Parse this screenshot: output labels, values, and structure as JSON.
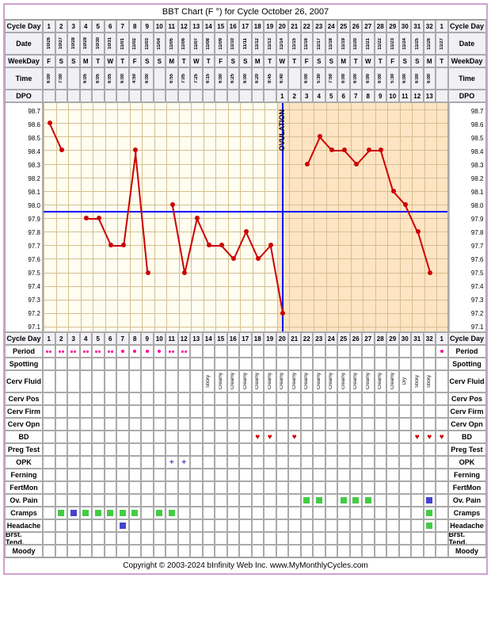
{
  "title": "BBT Chart (F °) for Cycle October 26, 2007",
  "copyright": "Copyright © 2003-2024 bInfinity Web Inc.    www.MyMonthlyCycles.com",
  "cols": 33,
  "cellw": 15.5,
  "labels": {
    "cycleday": "Cycle Day",
    "date": "Date",
    "weekday": "WeekDay",
    "time": "Time",
    "dpo": "DPO",
    "period": "Period",
    "spotting": "Spotting",
    "cervfluid": "Cerv Fluid",
    "cervpos": "Cerv Pos",
    "cervfirm": "Cerv Firm",
    "cervopn": "Cerv Opn",
    "bd": "BD",
    "preg": "Preg Test",
    "opk": "OPK",
    "ferning": "Ferning",
    "fertmon": "FertMon",
    "ovpain": "Ov. Pain",
    "cramps": "Cramps",
    "headache": "Headache",
    "brst": "Brst. Tend.",
    "moody": "Moody",
    "ovulation": "OVULATION"
  },
  "cycledays": [
    "1",
    "2",
    "3",
    "4",
    "5",
    "6",
    "7",
    "8",
    "9",
    "10",
    "11",
    "12",
    "13",
    "14",
    "15",
    "16",
    "17",
    "18",
    "19",
    "20",
    "21",
    "22",
    "23",
    "24",
    "25",
    "26",
    "27",
    "28",
    "29",
    "30",
    "31",
    "32",
    "1"
  ],
  "dates": [
    "10/26",
    "10/27",
    "10/28",
    "10/29",
    "10/30",
    "10/31",
    "11/01",
    "11/02",
    "11/03",
    "11/04",
    "11/05",
    "11/06",
    "11/07",
    "11/08",
    "11/09",
    "11/10",
    "11/11",
    "11/12",
    "11/13",
    "11/14",
    "11/15",
    "11/16",
    "11/17",
    "11/18",
    "11/19",
    "11/20",
    "11/21",
    "11/22",
    "11/23",
    "11/24",
    "11/25",
    "11/26",
    "11/27"
  ],
  "weekdays": [
    "F",
    "S",
    "S",
    "M",
    "T",
    "W",
    "T",
    "F",
    "S",
    "S",
    "M",
    "T",
    "W",
    "T",
    "F",
    "S",
    "S",
    "M",
    "T",
    "W",
    "T",
    "F",
    "S",
    "S",
    "M",
    "T",
    "W",
    "T",
    "F",
    "S",
    "S",
    "M",
    "T"
  ],
  "times": [
    "6:00",
    "7:00",
    "",
    "6:05",
    "6:05",
    "6:05",
    "6:00",
    "4:50",
    "6:00",
    "",
    "6:55",
    "7:05",
    "7:25",
    "6:15",
    "6:00",
    "6:25",
    "6:00",
    "6:20",
    "9:45",
    "6:40",
    "",
    "6:00",
    "5:30",
    "7:50",
    "6:00",
    "6:00",
    "6:00",
    "6:00",
    "5:30",
    "6:00",
    "6:00",
    "6:00",
    ""
  ],
  "dpos": [
    "",
    "",
    "",
    "",
    "",
    "",
    "",
    "",
    "",
    "",
    "",
    "",
    "",
    "",
    "",
    "",
    "",
    "",
    "",
    "1",
    "2",
    "3",
    "4",
    "5",
    "6",
    "7",
    "8",
    "9",
    "10",
    "11",
    "12",
    "13",
    ""
  ],
  "ylabels": [
    "98.7",
    "98.6",
    "98.5",
    "98.4",
    "98.3",
    "98.2",
    "98.1",
    "98.0",
    "97.9",
    "97.8",
    "97.7",
    "97.6",
    "97.5",
    "97.4",
    "97.3",
    "97.2",
    "97.1"
  ],
  "ymax": 98.7,
  "ymin": 97.1,
  "coverline": 97.95,
  "ovulation_col": 19,
  "luteal_start": 19,
  "temps": [
    98.6,
    98.4,
    null,
    97.9,
    97.9,
    97.7,
    97.7,
    98.4,
    97.5,
    null,
    98.0,
    97.5,
    97.9,
    97.7,
    97.7,
    97.6,
    97.8,
    97.6,
    97.7,
    97.2,
    null,
    98.3,
    98.5,
    98.4,
    98.4,
    98.3,
    98.4,
    98.4,
    98.1,
    98.0,
    97.8,
    97.5,
    null
  ],
  "period": [
    "2",
    "2",
    "2",
    "2",
    "2",
    "2",
    "1",
    "1",
    "1",
    "1",
    "2",
    "2",
    "",
    "",
    "",
    "",
    "",
    "",
    "",
    "",
    "",
    "",
    "",
    "",
    "",
    "",
    "",
    "",
    "",
    "",
    "",
    "",
    "1"
  ],
  "cervfluid": [
    "",
    "",
    "",
    "",
    "",
    "",
    "",
    "",
    "",
    "",
    "",
    "",
    "",
    "Sticky",
    "Creamy",
    "Creamy",
    "Creamy",
    "Creamy",
    "Creamy",
    "Creamy",
    "Creamy",
    "Creamy",
    "Creamy",
    "Creamy",
    "Creamy",
    "Creamy",
    "Creamy",
    "Creamy",
    "Creamy",
    "Dry",
    "Sticky",
    "Sticky",
    ""
  ],
  "bd": [
    "",
    "",
    "",
    "",
    "",
    "",
    "",
    "",
    "",
    "",
    "",
    "",
    "",
    "",
    "",
    "",
    "",
    "h",
    "h",
    "",
    "h",
    "",
    "",
    "",
    "",
    "",
    "",
    "",
    "",
    "",
    "h",
    "h",
    "h"
  ],
  "opk": [
    "",
    "",
    "",
    "",
    "",
    "",
    "",
    "",
    "",
    "",
    "+",
    "+",
    "",
    "",
    "",
    "",
    "",
    "",
    "",
    "",
    "",
    "",
    "",
    "",
    "",
    "",
    "",
    "",
    "",
    "",
    "",
    "",
    ""
  ],
  "ovpain": [
    "",
    "",
    "",
    "",
    "",
    "",
    "",
    "",
    "",
    "",
    "",
    "",
    "",
    "",
    "",
    "",
    "",
    "",
    "",
    "",
    "",
    "g",
    "g",
    "",
    "g",
    "g",
    "g",
    "",
    "",
    "",
    "",
    "b",
    ""
  ],
  "cramps": [
    "",
    "g",
    "b",
    "g",
    "g",
    "g",
    "g",
    "g",
    "",
    "g",
    "g",
    "",
    "",
    "",
    "",
    "",
    "",
    "",
    "",
    "",
    "",
    "",
    "",
    "",
    "",
    "",
    "",
    "",
    "",
    "",
    "",
    "g",
    ""
  ],
  "headache": [
    "",
    "",
    "",
    "",
    "",
    "",
    "b",
    "",
    "",
    "",
    "",
    "",
    "",
    "",
    "",
    "",
    "",
    "",
    "",
    "",
    "",
    "",
    "",
    "",
    "",
    "",
    "",
    "",
    "",
    "",
    "",
    "g",
    ""
  ],
  "brst": [
    "",
    "",
    "",
    "",
    "",
    "",
    "",
    "",
    "",
    "",
    "",
    "",
    "",
    "",
    "",
    "",
    "",
    "",
    "",
    "",
    "",
    "",
    "",
    "",
    "",
    "",
    "",
    "",
    "",
    "",
    "",
    "",
    ""
  ],
  "moody": [
    "",
    "",
    "",
    "",
    "",
    "",
    "",
    "",
    "",
    "",
    "",
    "",
    "",
    "",
    "",
    "",
    "",
    "",
    "",
    "",
    "",
    "",
    "",
    "",
    "",
    "",
    "",
    "",
    "",
    "",
    "",
    "",
    ""
  ],
  "colors": {
    "bg": "#fffdf0",
    "luteal": "#ffe4c4",
    "cover": "#0000ff",
    "point": "#cc0000"
  }
}
